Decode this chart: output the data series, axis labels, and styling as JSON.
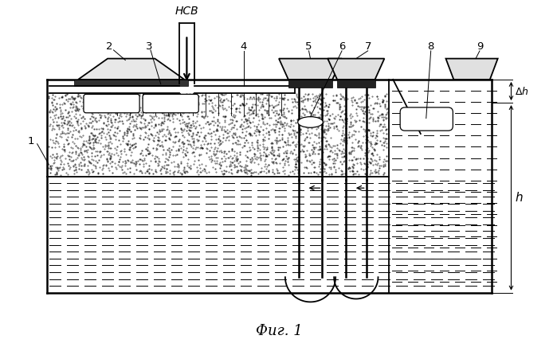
{
  "title": "Фиг. 1",
  "ncv_label": "НСВ",
  "bg_color": "#ffffff",
  "line_color": "#000000",
  "fig_width": 6.99,
  "fig_height": 4.41,
  "dpi": 100
}
